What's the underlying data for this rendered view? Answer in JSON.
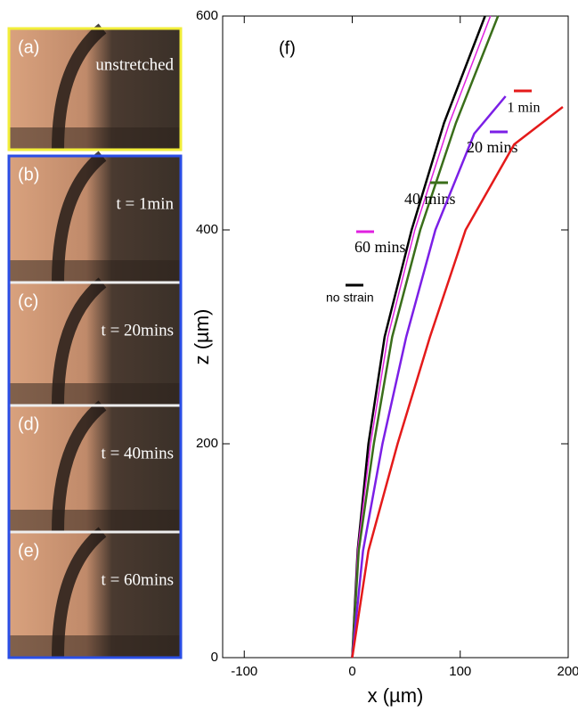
{
  "panels": [
    {
      "label": "(a)",
      "caption": "unstretched"
    },
    {
      "label": "(b)",
      "caption": "t = 1min"
    },
    {
      "label": "(c)",
      "caption": "t = 20mins"
    },
    {
      "label": "(d)",
      "caption": "t = 40mins"
    },
    {
      "label": "(e)",
      "caption": "t = 60mins"
    }
  ],
  "chart_data": {
    "type": "line",
    "title": "(f)",
    "x_label": "x (µm)",
    "y_label": "z (µm)",
    "xlim": [
      -120,
      200
    ],
    "ylim": [
      0,
      600
    ],
    "xticks": [
      -100,
      0,
      100,
      200
    ],
    "yticks": [
      0,
      200,
      400,
      600
    ],
    "series": [
      {
        "name": "no strain",
        "color": "#000000",
        "x": [
          0,
          5,
          15,
          30,
          55,
          85,
          123
        ],
        "values": [
          0,
          100,
          200,
          300,
          400,
          500,
          600
        ]
      },
      {
        "name": "60 mins",
        "color": "#e020e0",
        "x": [
          0,
          5,
          17,
          33,
          58,
          90,
          128
        ],
        "values": [
          0,
          100,
          200,
          300,
          400,
          500,
          600
        ]
      },
      {
        "name": "40 mins",
        "color": "#3a6e1a",
        "x": [
          0,
          6,
          20,
          37,
          63,
          96,
          135
        ],
        "values": [
          0,
          100,
          200,
          300,
          400,
          500,
          600
        ]
      },
      {
        "name": "20 mins",
        "color": "#7b1fe6",
        "x": [
          0,
          10,
          28,
          50,
          77,
          113,
          142
        ],
        "values": [
          0,
          100,
          200,
          300,
          400,
          490,
          525
        ]
      },
      {
        "name": "1 min",
        "color": "#e41a1a",
        "x": [
          0,
          15,
          42,
          72,
          105,
          150,
          195
        ],
        "values": [
          0,
          100,
          200,
          300,
          400,
          480,
          515
        ]
      }
    ]
  }
}
